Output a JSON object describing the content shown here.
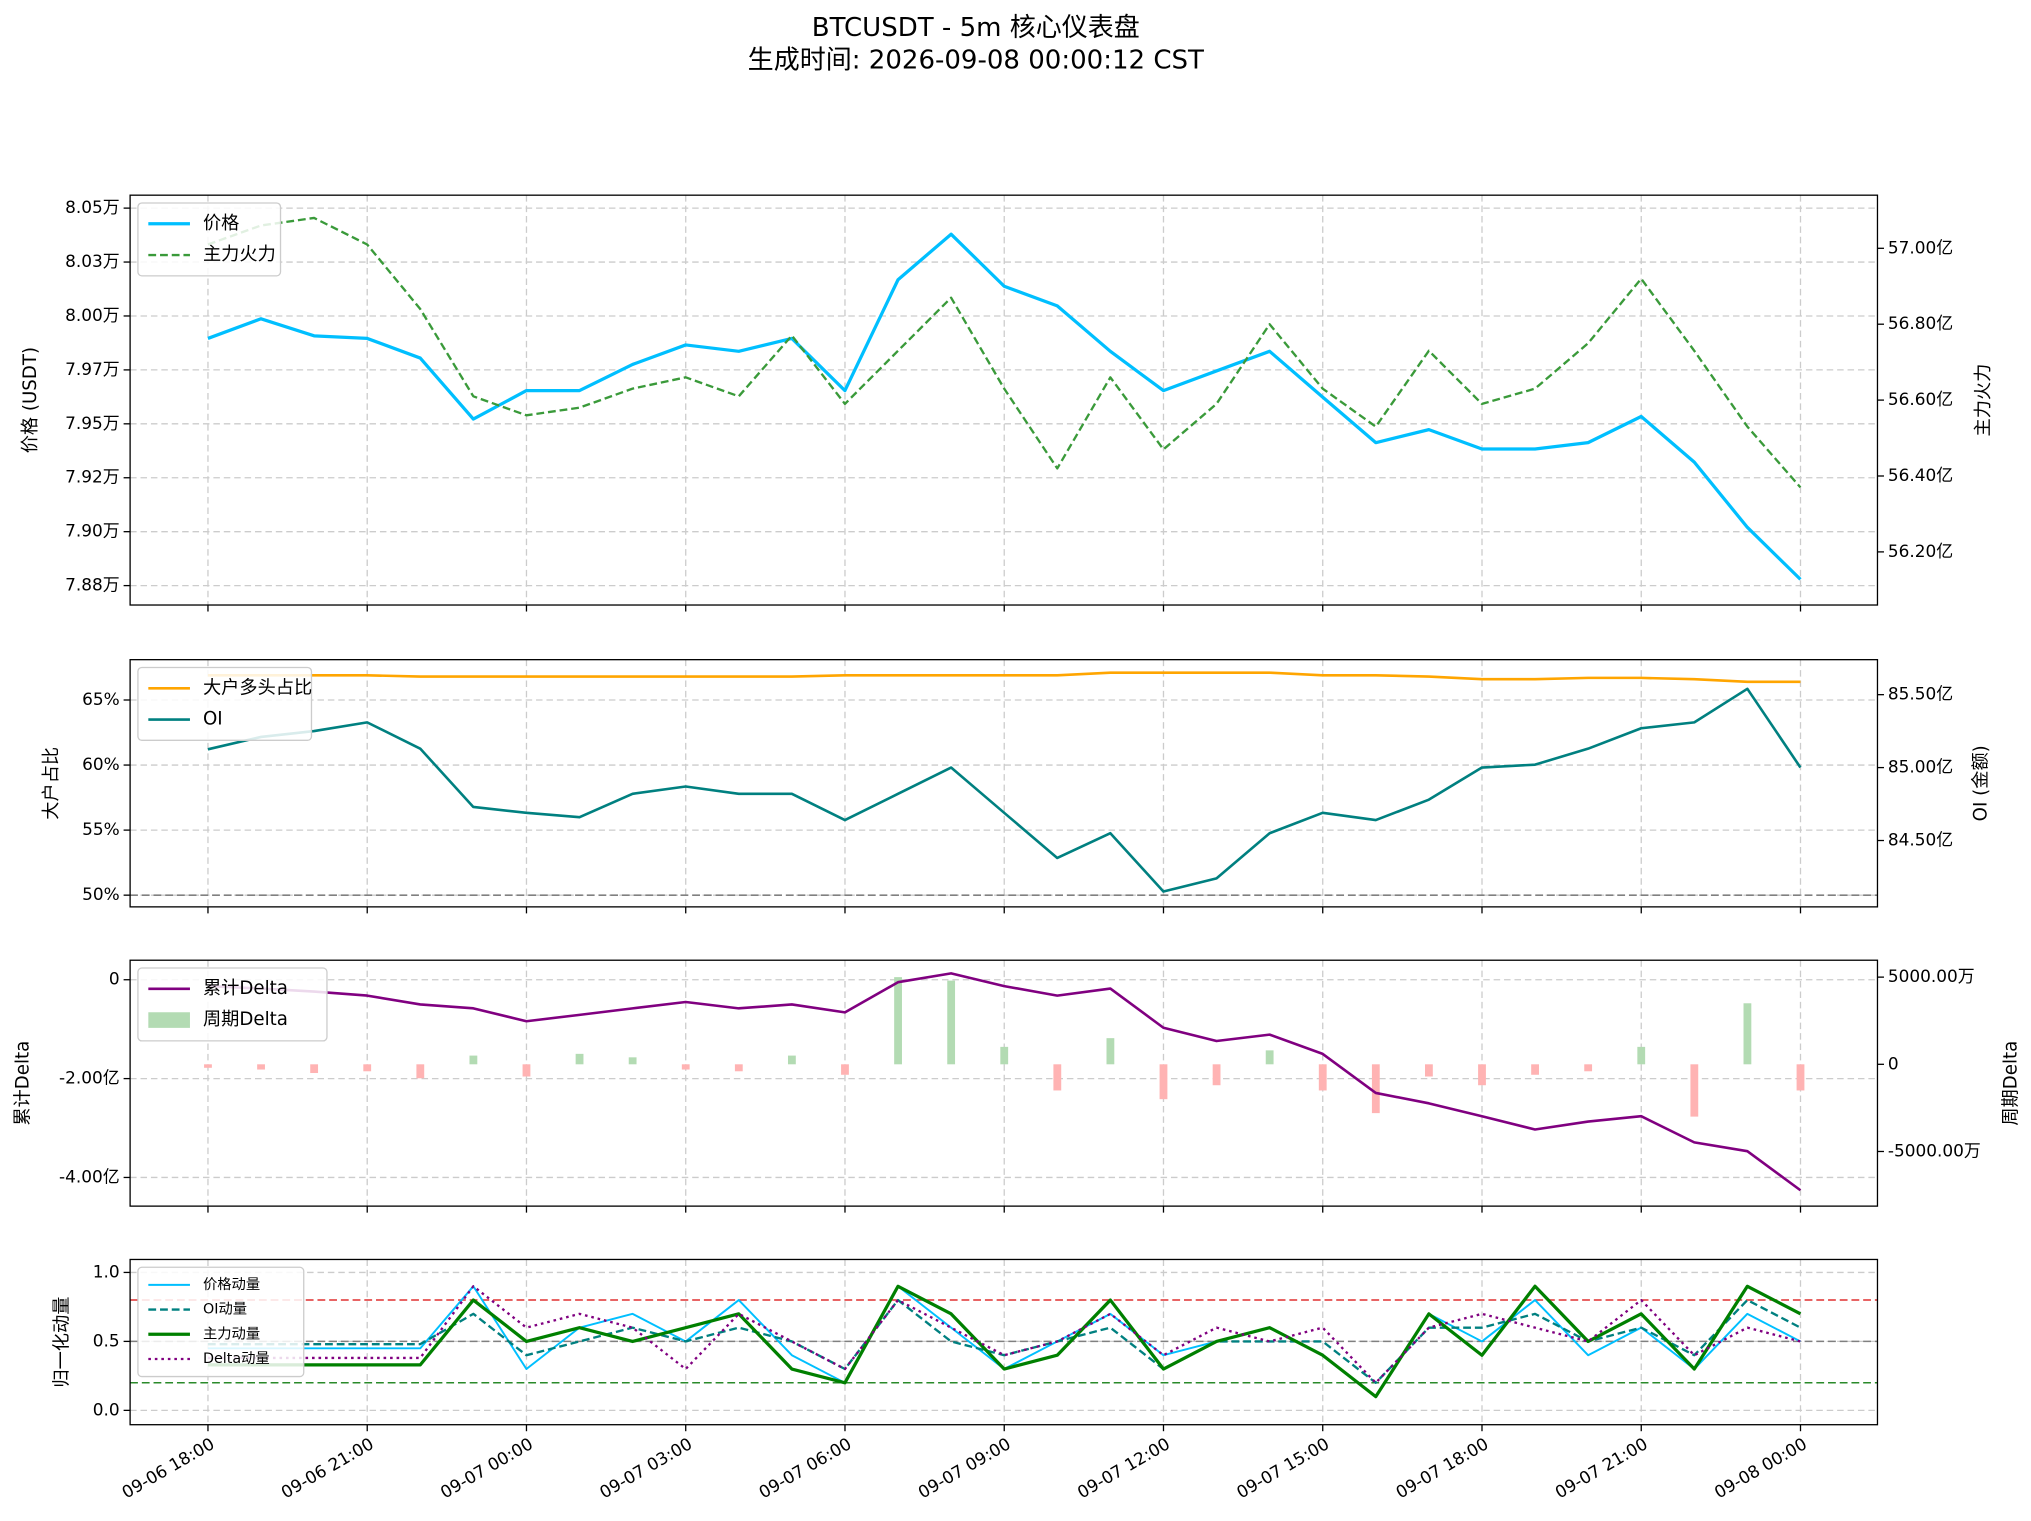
{
  "title": "BTCUSDT - 5m 核心仪表盘",
  "subtitle": "生成时间: 2026-09-08 00:00:12 CST",
  "chart_data": [
    {
      "type": "line",
      "grid": true,
      "legend": "upper left",
      "ylabel": "价格 (USDT)",
      "ylabel_color": "#000000",
      "y2label": "主力火力",
      "y2label_color": "#808080",
      "xlim": [
        "09-06 16:32",
        "09-08 01:27"
      ],
      "xticks": [
        "09-06 18:00",
        "09-06 21:00",
        "09-07 00:00",
        "09-07 03:00",
        "09-07 06:00",
        "09-07 09:00",
        "09-07 12:00",
        "09-07 15:00",
        "09-07 18:00",
        "09-07 21:00",
        "09-08 00:00"
      ],
      "ylim": [
        78660,
        80560
      ],
      "yticks": [
        {
          "value": 78750,
          "label": "7.88万"
        },
        {
          "value": 79000,
          "label": "7.90万"
        },
        {
          "value": 79250,
          "label": "7.92万"
        },
        {
          "value": 79500,
          "label": "7.95万"
        },
        {
          "value": 79750,
          "label": "7.97万"
        },
        {
          "value": 80000,
          "label": "8.00万"
        },
        {
          "value": 80250,
          "label": "8.03万"
        },
        {
          "value": 80500,
          "label": "8.05万"
        }
      ],
      "y2lim": [
        56.06,
        57.14
      ],
      "y2ticks": [
        {
          "value": 56.2,
          "label": "56.20亿"
        },
        {
          "value": 56.4,
          "label": "56.40亿"
        },
        {
          "value": 56.6,
          "label": "56.60亿"
        },
        {
          "value": 56.8,
          "label": "56.80亿"
        },
        {
          "value": 57.0,
          "label": "57.00亿"
        }
      ],
      "x": [
        "09-06 18:00",
        "09-06 19:00",
        "09-06 20:00",
        "09-06 21:00",
        "09-06 22:00",
        "09-06 23:00",
        "09-07 00:00",
        "09-07 01:00",
        "09-07 02:00",
        "09-07 03:00",
        "09-07 04:00",
        "09-07 05:00",
        "09-07 06:00",
        "09-07 07:00",
        "09-07 08:00",
        "09-07 09:00",
        "09-07 10:00",
        "09-07 11:00",
        "09-07 12:00",
        "09-07 13:00",
        "09-07 14:00",
        "09-07 15:00",
        "09-07 16:00",
        "09-07 17:00",
        "09-07 18:00",
        "09-07 19:00",
        "09-07 20:00",
        "09-07 21:00",
        "09-07 22:00",
        "09-07 23:00",
        "09-08 00:00"
      ],
      "series": [
        {
          "name": "价格",
          "type": "line",
          "color": "#00bfff",
          "width": 2.5,
          "dash": "solid",
          "values": [
            79896,
            79987,
            79908,
            79896,
            79805,
            79522,
            79654,
            79654,
            79775,
            79866,
            79836,
            79896,
            79654,
            80168,
            80379,
            80138,
            80047,
            79836,
            79654,
            79745,
            79836,
            79624,
            79413,
            79473,
            79383,
            79383,
            79413,
            79534,
            79322,
            79020,
            78779
          ]
        },
        {
          "name": "主力火力",
          "type": "line",
          "axis": "y2",
          "color": "#3a9a3a",
          "width": 1.8,
          "dash": "dashed",
          "values": [
            57.01,
            57.06,
            57.08,
            57.01,
            56.84,
            56.61,
            56.56,
            56.58,
            56.63,
            56.66,
            56.61,
            56.77,
            56.59,
            56.73,
            56.87,
            56.63,
            56.42,
            56.66,
            56.47,
            56.59,
            56.8,
            56.63,
            56.53,
            56.73,
            56.59,
            56.63,
            56.75,
            56.92,
            56.73,
            56.53,
            56.37
          ]
        }
      ]
    },
    {
      "type": "line",
      "grid": true,
      "legend": "upper left",
      "ylabel": "大户占比",
      "ylabel_color": "#ffa500",
      "y2label": "OI (金额)",
      "y2label_color": "#008080",
      "xlim": [
        "09-06 16:32",
        "09-08 01:27"
      ],
      "xticks": [
        "09-06 18:00",
        "09-06 21:00",
        "09-07 00:00",
        "09-07 03:00",
        "09-07 06:00",
        "09-07 09:00",
        "09-07 12:00",
        "09-07 15:00",
        "09-07 18:00",
        "09-07 21:00",
        "09-08 00:00"
      ],
      "ylim": [
        49.1,
        68.1
      ],
      "yticks": [
        {
          "value": 50,
          "label": "50%"
        },
        {
          "value": 55,
          "label": "55%"
        },
        {
          "value": 60,
          "label": "60%"
        },
        {
          "value": 65,
          "label": "65%"
        }
      ],
      "y2lim": [
        84.045,
        85.74
      ],
      "y2ticks": [
        {
          "value": 84.5,
          "label": "84.50亿"
        },
        {
          "value": 85.0,
          "label": "85.00亿"
        },
        {
          "value": 85.5,
          "label": "85.50亿"
        }
      ],
      "hlines": [
        {
          "value": 50,
          "color": "#808080"
        }
      ],
      "x": [
        "09-06 18:00",
        "09-06 19:00",
        "09-06 20:00",
        "09-06 21:00",
        "09-06 22:00",
        "09-06 23:00",
        "09-07 00:00",
        "09-07 01:00",
        "09-07 02:00",
        "09-07 03:00",
        "09-07 04:00",
        "09-07 05:00",
        "09-07 06:00",
        "09-07 07:00",
        "09-07 08:00",
        "09-07 09:00",
        "09-07 10:00",
        "09-07 11:00",
        "09-07 12:00",
        "09-07 13:00",
        "09-07 14:00",
        "09-07 15:00",
        "09-07 16:00",
        "09-07 17:00",
        "09-07 18:00",
        "09-07 19:00",
        "09-07 20:00",
        "09-07 21:00",
        "09-07 22:00",
        "09-07 23:00",
        "09-08 00:00"
      ],
      "series": [
        {
          "name": "大户多头占比",
          "type": "line",
          "color": "#ffa500",
          "width": 2,
          "dash": "solid",
          "values": [
            66.9,
            66.9,
            66.9,
            66.9,
            66.8,
            66.8,
            66.8,
            66.8,
            66.8,
            66.8,
            66.8,
            66.8,
            66.9,
            66.9,
            66.9,
            66.9,
            66.9,
            67.1,
            67.1,
            67.1,
            67.1,
            66.9,
            66.9,
            66.8,
            66.6,
            66.6,
            66.7,
            66.7,
            66.6,
            66.4,
            66.4
          ]
        },
        {
          "name": "OI",
          "type": "line",
          "axis": "y2",
          "color": "#008080",
          "width": 2,
          "dash": "solid",
          "values": [
            85.125,
            85.21,
            85.25,
            85.31,
            85.13,
            84.73,
            84.69,
            84.66,
            84.82,
            84.87,
            84.82,
            84.82,
            84.64,
            84.82,
            85.0,
            84.69,
            84.38,
            84.55,
            84.15,
            84.24,
            84.55,
            84.69,
            84.64,
            84.78,
            85.0,
            85.02,
            85.13,
            85.27,
            85.31,
            85.54,
            85.0
          ]
        }
      ]
    },
    {
      "type": "line",
      "grid": true,
      "legend": "upper left",
      "ylabel": "累计Delta",
      "ylabel_color": "#800080",
      "y2label": "周期Delta",
      "y2label_color": "#808080",
      "xlim": [
        "09-06 16:32",
        "09-08 01:27"
      ],
      "xticks": [
        "09-06 18:00",
        "09-06 21:00",
        "09-07 00:00",
        "09-07 03:00",
        "09-07 06:00",
        "09-07 09:00",
        "09-07 12:00",
        "09-07 15:00",
        "09-07 18:00",
        "09-07 21:00",
        "09-08 00:00"
      ],
      "ylim": [
        -4.58,
        0.395
      ],
      "yticks": [
        {
          "value": -4,
          "label": "-4.00亿"
        },
        {
          "value": -2,
          "label": "-2.00亿"
        },
        0
      ],
      "y2lim": [
        -8134,
        5970
      ],
      "y2ticks": [
        {
          "value": -5000,
          "label": "-5000.00万"
        },
        0,
        {
          "value": 5000,
          "label": "5000.00万"
        }
      ],
      "x": [
        "09-06 18:00",
        "09-06 19:00",
        "09-06 20:00",
        "09-06 21:00",
        "09-06 22:00",
        "09-06 23:00",
        "09-07 00:00",
        "09-07 01:00",
        "09-07 02:00",
        "09-07 03:00",
        "09-07 04:00",
        "09-07 05:00",
        "09-07 06:00",
        "09-07 07:00",
        "09-07 08:00",
        "09-07 09:00",
        "09-07 10:00",
        "09-07 11:00",
        "09-07 12:00",
        "09-07 13:00",
        "09-07 14:00",
        "09-07 15:00",
        "09-07 16:00",
        "09-07 17:00",
        "09-07 18:00",
        "09-07 19:00",
        "09-07 20:00",
        "09-07 21:00",
        "09-07 22:00",
        "09-07 23:00",
        "09-08 00:00"
      ],
      "series": [
        {
          "name": "累计Delta",
          "type": "line",
          "color": "#800080",
          "width": 2,
          "dash": "solid",
          "values": [
            -0.13,
            -0.18,
            -0.24,
            -0.32,
            -0.5,
            -0.58,
            -0.84,
            -0.71,
            -0.58,
            -0.45,
            -0.58,
            -0.5,
            -0.66,
            -0.05,
            0.13,
            -0.13,
            -0.32,
            -0.18,
            -0.97,
            -1.24,
            -1.11,
            -1.5,
            -2.29,
            -2.5,
            -2.76,
            -3.03,
            -2.87,
            -2.76,
            -3.29,
            -3.47,
            -4.26
          ]
        },
        {
          "name": "周期Delta",
          "type": "bar",
          "axis": "y2",
          "color": "#b3dbb3",
          "neg_color": "#ffb3b3",
          "values": [
            -200,
            -300,
            -500,
            -400,
            -800,
            500,
            -700,
            600,
            400,
            -300,
            -400,
            500,
            -600,
            5000,
            4800,
            1000,
            -1500,
            1500,
            -2000,
            -1200,
            800,
            -1500,
            -2800,
            -700,
            -1200,
            -600,
            -400,
            1000,
            -3000,
            3500,
            -1500
          ]
        }
      ]
    },
    {
      "type": "line",
      "grid": true,
      "legend": "upper left",
      "ylabel": "归一化动量",
      "ylabel_color": "#000000",
      "xlim": [
        "09-06 16:32",
        "09-08 01:27"
      ],
      "xticks": [
        "09-06 18:00",
        "09-06 21:00",
        "09-07 00:00",
        "09-07 03:00",
        "09-07 06:00",
        "09-07 09:00",
        "09-07 12:00",
        "09-07 15:00",
        "09-07 18:00",
        "09-07 21:00",
        "09-08 00:00"
      ],
      "ylim": [
        -0.104,
        1.094
      ],
      "yticks": [
        {
          "value": 0,
          "label": "0.0"
        },
        0.5,
        {
          "value": 1,
          "label": "1.0"
        }
      ],
      "hlines": [
        {
          "value": 0.8,
          "color": "#e03030"
        },
        {
          "value": 0.5,
          "color": "#808080"
        },
        {
          "value": 0.2,
          "color": "#2a8a2a"
        }
      ],
      "x": [
        "09-06 18:00",
        "09-06 19:00",
        "09-06 20:00",
        "09-06 21:00",
        "09-06 22:00",
        "09-06 23:00",
        "09-07 00:00",
        "09-07 01:00",
        "09-07 02:00",
        "09-07 03:00",
        "09-07 04:00",
        "09-07 05:00",
        "09-07 06:00",
        "09-07 07:00",
        "09-07 08:00",
        "09-07 09:00",
        "09-07 10:00",
        "09-07 11:00",
        "09-07 12:00",
        "09-07 13:00",
        "09-07 14:00",
        "09-07 15:00",
        "09-07 16:00",
        "09-07 17:00",
        "09-07 18:00",
        "09-07 19:00",
        "09-07 20:00",
        "09-07 21:00",
        "09-07 22:00",
        "09-07 23:00",
        "09-08 00:00"
      ],
      "series": [
        {
          "name": "价格动量",
          "type": "line",
          "color": "#00bfff",
          "width": 1.5,
          "dash": "solid",
          "values": [
            0.45,
            0.45,
            0.45,
            0.45,
            0.45,
            0.9,
            0.3,
            0.6,
            0.7,
            0.5,
            0.8,
            0.4,
            0.2,
            0.9,
            0.6,
            0.3,
            0.5,
            0.7,
            0.4,
            0.5,
            0.6,
            0.4,
            0.1,
            0.7,
            0.5,
            0.8,
            0.4,
            0.6,
            0.3,
            0.7,
            0.5
          ]
        },
        {
          "name": "OI动量",
          "type": "line",
          "color": "#008080",
          "width": 1.8,
          "dash": "dashed",
          "values": [
            0.48,
            0.48,
            0.48,
            0.48,
            0.48,
            0.7,
            0.4,
            0.5,
            0.6,
            0.5,
            0.6,
            0.5,
            0.3,
            0.8,
            0.5,
            0.4,
            0.5,
            0.6,
            0.3,
            0.5,
            0.5,
            0.5,
            0.2,
            0.6,
            0.6,
            0.7,
            0.5,
            0.6,
            0.4,
            0.8,
            0.6
          ]
        },
        {
          "name": "主力动量",
          "type": "line",
          "color": "#008000",
          "width": 2.5,
          "dash": "solid",
          "values": [
            0.33,
            0.33,
            0.33,
            0.33,
            0.33,
            0.8,
            0.5,
            0.6,
            0.5,
            0.6,
            0.7,
            0.3,
            0.2,
            0.9,
            0.7,
            0.3,
            0.4,
            0.8,
            0.3,
            0.5,
            0.6,
            0.4,
            0.1,
            0.7,
            0.4,
            0.9,
            0.5,
            0.7,
            0.3,
            0.9,
            0.7
          ]
        },
        {
          "name": "Delta动量",
          "type": "line",
          "color": "#800080",
          "width": 1.8,
          "dash": "dotted",
          "values": [
            0.38,
            0.38,
            0.38,
            0.38,
            0.38,
            0.9,
            0.6,
            0.7,
            0.6,
            0.3,
            0.7,
            0.5,
            0.3,
            0.8,
            0.6,
            0.4,
            0.5,
            0.7,
            0.4,
            0.6,
            0.5,
            0.6,
            0.2,
            0.6,
            0.7,
            0.6,
            0.5,
            0.8,
            0.4,
            0.6,
            0.5
          ]
        }
      ]
    }
  ]
}
